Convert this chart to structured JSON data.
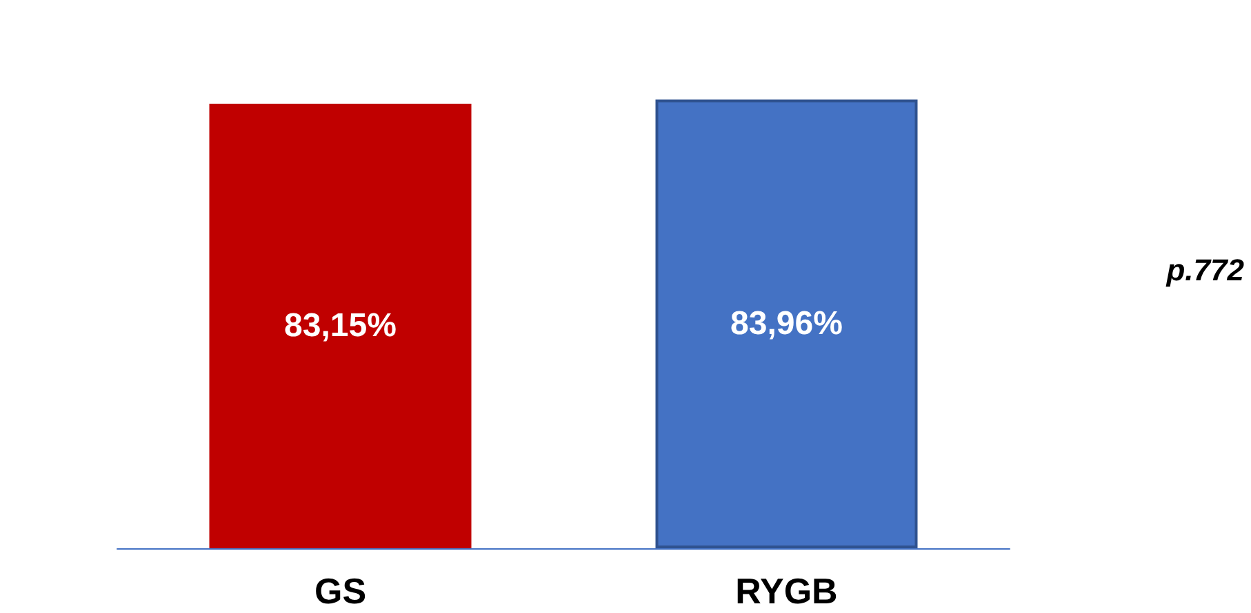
{
  "chart_data": {
    "type": "bar",
    "categories": [
      "GS",
      "RYGB"
    ],
    "values": [
      83.15,
      83.96
    ],
    "colors": [
      "#c00000",
      "#4472c4"
    ],
    "value_labels": [
      "83,15%",
      "83,96%"
    ],
    "annotations": [
      "p.772"
    ],
    "tick_labels": "x",
    "grid": false
  }
}
